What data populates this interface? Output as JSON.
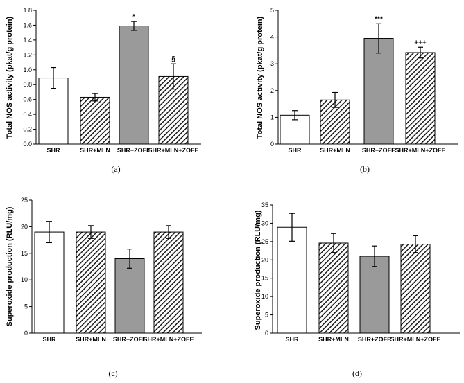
{
  "chart_data": [
    {
      "type": "bar",
      "panel_label": "(a)",
      "title": "",
      "xlabel": "",
      "ylabel": "Total NOS activity (pkat/g protein)",
      "ylim": [
        0,
        1.8
      ],
      "yticks": [
        "0.0",
        "0.2",
        "0.4",
        "0.6",
        "0.8",
        "1.0",
        "1.2",
        "1.4",
        "1.6",
        "1.8"
      ],
      "categories": [
        "SHR",
        "SHR+MLN",
        "SHR+ZOFE",
        "SHR+MLN+ZOFE"
      ],
      "values": [
        0.89,
        0.63,
        1.59,
        0.91
      ],
      "errors": [
        0.14,
        0.05,
        0.06,
        0.17
      ],
      "annotations": [
        "",
        "",
        "*",
        "§"
      ],
      "fills": [
        "white",
        "hatch",
        "gray",
        "hatch"
      ]
    },
    {
      "type": "bar",
      "panel_label": "(b)",
      "title": "",
      "xlabel": "",
      "ylabel": "Total NOS activity (pkat/g protein)",
      "ylim": [
        0,
        5
      ],
      "yticks": [
        "0",
        "1",
        "2",
        "3",
        "4",
        "5"
      ],
      "categories": [
        "SHR",
        "SHR+MLN",
        "SHR+ZOFE",
        "SHR+MLN+ZOFE"
      ],
      "values": [
        1.08,
        1.65,
        3.95,
        3.42
      ],
      "errors": [
        0.17,
        0.28,
        0.55,
        0.2
      ],
      "annotations": [
        "",
        "",
        "***",
        "+++"
      ],
      "fills": [
        "white",
        "hatch",
        "gray",
        "hatch"
      ]
    },
    {
      "type": "bar",
      "panel_label": "(c)",
      "title": "",
      "xlabel": "",
      "ylabel": "Superoxide production (RLU/mg)",
      "ylim": [
        0,
        25
      ],
      "yticks": [
        "0",
        "5",
        "10",
        "15",
        "20",
        "25"
      ],
      "categories": [
        "SHR",
        "SHR+MLN",
        "SHR+ZOFE",
        "SHR+MLN+ZOFE"
      ],
      "values": [
        19.0,
        19.0,
        14.0,
        19.0
      ],
      "errors": [
        2.0,
        1.2,
        1.8,
        1.2
      ],
      "annotations": [
        "",
        "",
        "",
        ""
      ],
      "fills": [
        "white",
        "hatch",
        "gray",
        "hatch"
      ]
    },
    {
      "type": "bar",
      "panel_label": "(d)",
      "title": "",
      "xlabel": "",
      "ylabel": "Superoxide production (RLU/mg)",
      "ylim": [
        0,
        35
      ],
      "yticks": [
        "0",
        "5",
        "10",
        "15",
        "20",
        "25",
        "30",
        "35"
      ],
      "categories": [
        "SHR",
        "SHR+MLN",
        "SHR+ZOFE",
        "SHR+MLN+ZOFE"
      ],
      "values": [
        28.9,
        24.6,
        21.0,
        24.3
      ],
      "errors": [
        3.8,
        2.6,
        2.8,
        2.3
      ],
      "annotations": [
        "",
        "",
        "",
        ""
      ],
      "fills": [
        "white",
        "hatch",
        "gray",
        "hatch"
      ]
    }
  ],
  "colors": {
    "bar_gray": "#9a9a9a",
    "bar_white": "#ffffff",
    "hatch_line": "#1a1a1a",
    "hatch_bg": "#ffffff",
    "axis": "#000000"
  }
}
